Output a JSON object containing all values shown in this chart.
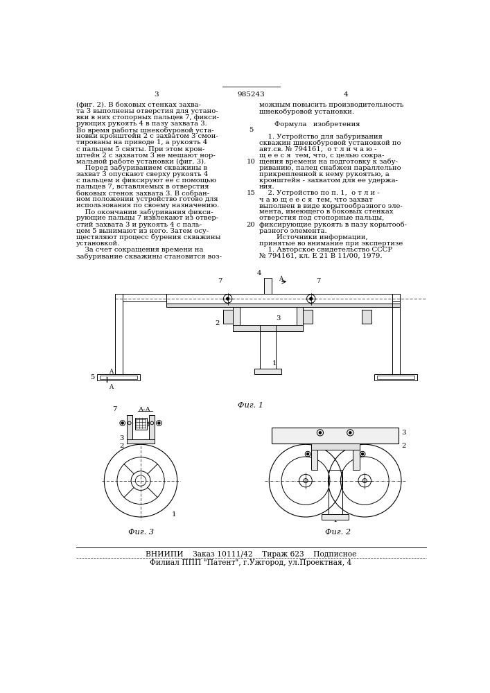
{
  "page_number_left": "3",
  "page_number_center": "985243",
  "page_number_right": "4",
  "left_column_text": [
    "(фиг. 2). В боковых стенках захва-",
    "та 3 выполнены отверстия для устано-",
    "вки в них стопорных пальцев 7, фикси-",
    "рующих рукоять 4 в пазу захвата 3.",
    "Во время работы шнекобуровой уста-",
    "новки кронштейн 2 с захватом 3 смон-",
    "тированы на приводе 1, а рукоять 4",
    "с пальцем 5 сняты. При этом крон-",
    "штейн 2 с захватом 3 не мешают нор-",
    "мальной работе установки (фиг. 3).",
    "    Перед забуриванием скважины в",
    "захват 3 опускают сверху рукоять 4",
    "с пальцем и фиксируют ее с помощью",
    "пальцев 7, вставляемых в отверстия",
    "боковых стенок захвата 3. В собран-",
    "ном положении устройство готово для",
    "использования по своему назначению.",
    "    По окончании забуривания фикси-",
    "рующие пальцы 7 извлекают из отвер-",
    "стий захвата 3 и рукоять 4 с паль-",
    "цем 5 вынимают из него. Затем осу-",
    "ществляют процесс бурения скважины",
    "установкой.",
    "    За счет сокращения времени на",
    "забуривание скважины становится воз-"
  ],
  "right_column_text": [
    "можным повысить производительность",
    "шнекобуровой установки.",
    "",
    "       Формула   изобретения",
    "",
    "    1. Устройство для забуривания",
    "скважин шнекобуровой установкой по",
    "авт.св. № 794161,  о т л и ч а ю -",
    "щ е е с я  тем, что, с целью сокра-",
    "щения времени на подготовку к забу-",
    "риванию, палец снабжен параллельно",
    "прикрепленной к нему рукоятью, а",
    "кронштейн - захватом для ее удержа-",
    "ния.",
    "    2. Устройство по п. 1,  о т л и -",
    "ч а ю щ е е с я  тем, что захват",
    "выполнен в виде корытообразного эле-",
    "мента, имеющего в боковых стенках",
    "отверстия под стопорные пальцы,",
    "фиксирующие рукоять в пазу корытооб-",
    "разного элемента.",
    "        Источники информации,",
    "принятые во внимание при экспертизе",
    "    1. Авторское свидетельство СССР",
    "№ 794161, кл. Е 21 В 11/00, 1979."
  ],
  "line_numbers": [
    "5",
    "10",
    "15",
    "20"
  ],
  "fig1_label": "Фиг. 1",
  "fig2_label": "Фиг. 2",
  "fig3_label": "Фиг. 3",
  "bottom_text1": "ВНИИПИ    Заказ 10111/42    Тираж 623    Подписное",
  "bottom_text2": "Филиал ППП \"Патент\", г.Ужгород, ул.Проектная, 4",
  "bg_color": "#ffffff",
  "text_color": "#000000",
  "font_size_body": 7.2,
  "font_size_header": 7.5
}
